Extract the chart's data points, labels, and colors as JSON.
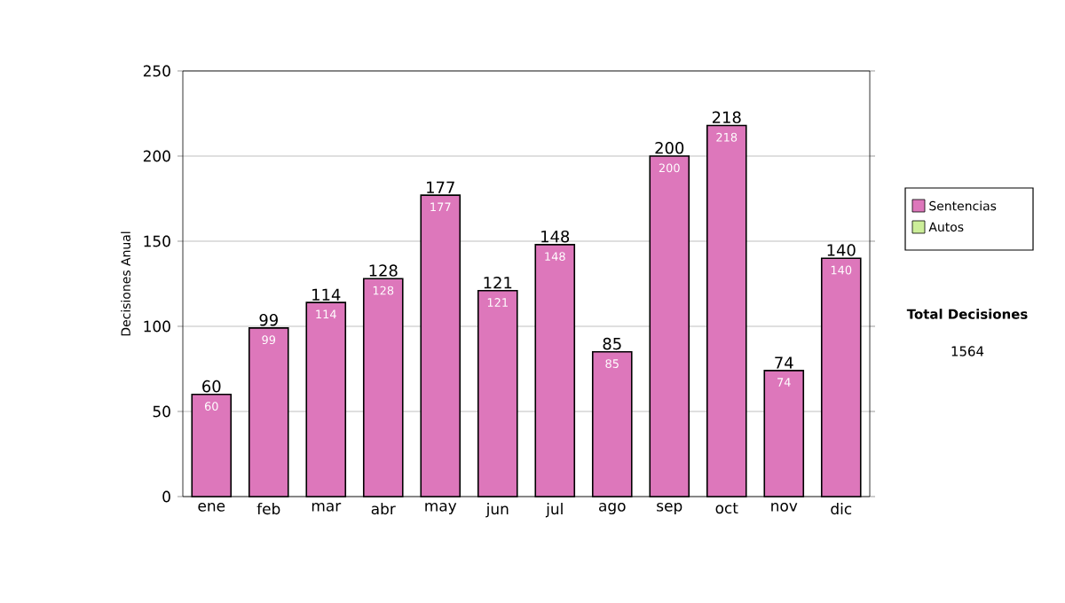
{
  "chart_data": {
    "type": "bar",
    "stacked": true,
    "ylabel": "Decisiones Anual",
    "categories": [
      "ene",
      "feb",
      "mar",
      "abr",
      "may",
      "jun",
      "jul",
      "ago",
      "sep",
      "oct",
      "nov",
      "dic"
    ],
    "series": [
      {
        "name": "Sentencias",
        "color": "#dd77bb",
        "values": [
          60,
          99,
          114,
          128,
          177,
          121,
          148,
          85,
          200,
          218,
          74,
          140
        ],
        "value_labels": [
          "60",
          "99",
          "114",
          "128",
          "177",
          "121",
          "148",
          "85",
          "200",
          "218",
          "74",
          "140"
        ]
      },
      {
        "name": "Autos",
        "color": "#ccee99",
        "values": [
          null,
          null,
          null,
          null,
          null,
          null,
          null,
          null,
          null,
          null,
          null,
          null
        ]
      }
    ],
    "totals": [
      "60",
      "99",
      "114",
      "128",
      "177",
      "121",
      "148",
      "85",
      "200",
      "218",
      "74",
      "140"
    ],
    "ylim": [
      0,
      250
    ],
    "yticks": [
      0,
      50,
      100,
      150,
      200,
      250
    ],
    "grid": "y",
    "legend": "right",
    "annotations": [
      "Total Decisiones",
      "1564"
    ]
  }
}
